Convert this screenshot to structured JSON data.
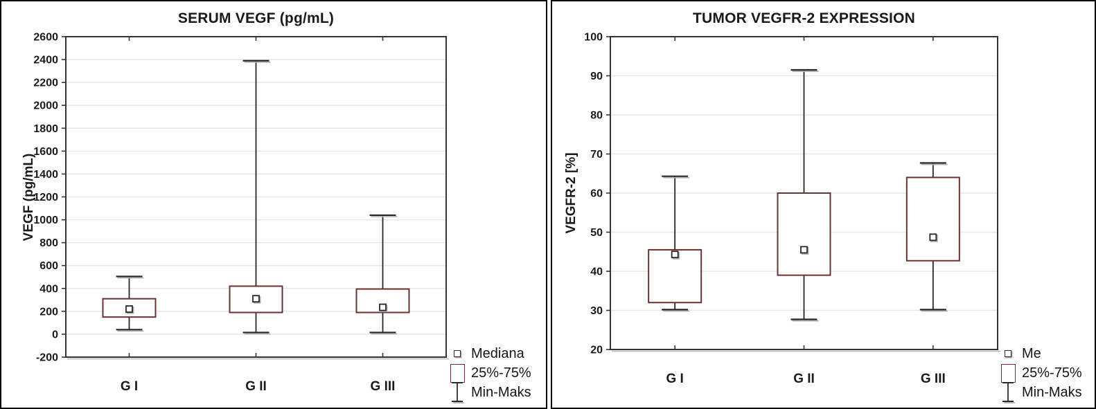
{
  "palette": {
    "background": "#ffffff",
    "panel_border": "#000000",
    "frame": "#333333",
    "grid": "#e7e7e7",
    "line": "#262626",
    "box_border": "#6a3333",
    "shadow": "#b0b0b0",
    "text": "#1a1a1a"
  },
  "chart_data": [
    {
      "type": "box",
      "title": "SERUM VEGF (pg/mL)",
      "ylabel": "VEGF (pg/mL)",
      "categories": [
        "G I",
        "G II",
        "G III"
      ],
      "ylim": [
        -200,
        2600
      ],
      "ytick_step": 200,
      "grid": true,
      "legend_position": "bottom-right",
      "legend": [
        "Mediana",
        "25%-75%",
        "Min-Maks"
      ],
      "boxes": [
        {
          "category": "G I",
          "min": 40,
          "q1": 150,
          "median": 220,
          "q3": 310,
          "max": 505
        },
        {
          "category": "G II",
          "min": 15,
          "q1": 190,
          "median": 310,
          "q3": 420,
          "max": 2390
        },
        {
          "category": "G III",
          "min": 15,
          "q1": 190,
          "median": 235,
          "q3": 395,
          "max": 1040
        }
      ]
    },
    {
      "type": "box",
      "title": "TUMOR VEGFR-2 EXPRESSION",
      "ylabel": "VEGFR-2 [%]",
      "categories": [
        "G I",
        "G II",
        "G III"
      ],
      "ylim": [
        20,
        100
      ],
      "ytick_step": 10,
      "grid": true,
      "legend_position": "bottom-right",
      "legend": [
        "Me",
        "25%-75%",
        "Min-Maks"
      ],
      "boxes": [
        {
          "category": "G I",
          "min": 30.2,
          "q1": 32,
          "median": 44.3,
          "q3": 45.5,
          "max": 64.3
        },
        {
          "category": "G II",
          "min": 27.7,
          "q1": 39,
          "median": 45.5,
          "q3": 60,
          "max": 91.5
        },
        {
          "category": "G III",
          "min": 30.2,
          "q1": 42.7,
          "median": 48.7,
          "q3": 64,
          "max": 67.7
        }
      ]
    }
  ]
}
